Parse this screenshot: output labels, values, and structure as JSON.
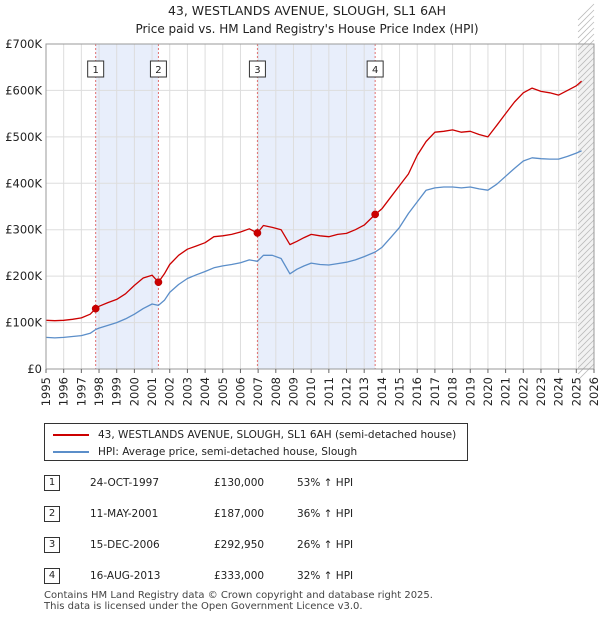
{
  "chart_data": {
    "type": "line",
    "title": "43, WESTLANDS AVENUE, SLOUGH, SL1 6AH",
    "subtitle": "Price paid vs. HM Land Registry's House Price Index (HPI)",
    "xlim": [
      1995,
      2026
    ],
    "ylim": [
      0,
      700000
    ],
    "y_ticks": [
      {
        "value": 0,
        "label": "£0"
      },
      {
        "value": 100000,
        "label": "£100K"
      },
      {
        "value": 200000,
        "label": "£200K"
      },
      {
        "value": 300000,
        "label": "£300K"
      },
      {
        "value": 400000,
        "label": "£400K"
      },
      {
        "value": 500000,
        "label": "£500K"
      },
      {
        "value": 600000,
        "label": "£600K"
      },
      {
        "value": 700000,
        "label": "£700K"
      }
    ],
    "x_ticks": [
      "1995",
      "1996",
      "1997",
      "1998",
      "1999",
      "2000",
      "2001",
      "2002",
      "2003",
      "2004",
      "2005",
      "2006",
      "2007",
      "2008",
      "2009",
      "2010",
      "2011",
      "2012",
      "2013",
      "2014",
      "2015",
      "2016",
      "2017",
      "2018",
      "2019",
      "2020",
      "2021",
      "2022",
      "2023",
      "2024",
      "2025",
      "2026"
    ],
    "forecast_from": 2025.1,
    "colors": {
      "property": "#cc0000",
      "hpi": "#5b8ec9",
      "shade": "#e8eefb",
      "marker": "#cc0000"
    },
    "series": [
      {
        "name": "43, WESTLANDS AVENUE, SLOUGH, SL1 6AH (semi-detached house)",
        "color": "#cc0000",
        "x": [
          1995.0,
          1995.5,
          1996.0,
          1996.5,
          1997.0,
          1997.5,
          1997.81,
          1998.0,
          1998.5,
          1999.0,
          1999.5,
          2000.0,
          2000.5,
          2001.0,
          2001.36,
          2001.7,
          2002.0,
          2002.5,
          2003.0,
          2003.5,
          2004.0,
          2004.5,
          2005.0,
          2005.5,
          2006.0,
          2006.5,
          2006.96,
          2007.3,
          2007.8,
          2008.3,
          2008.8,
          2009.2,
          2009.6,
          2010.0,
          2010.5,
          2011.0,
          2011.5,
          2012.0,
          2012.5,
          2013.0,
          2013.62,
          2014.0,
          2014.5,
          2015.0,
          2015.5,
          2016.0,
          2016.5,
          2017.0,
          2017.5,
          2018.0,
          2018.5,
          2019.0,
          2019.5,
          2020.0,
          2020.5,
          2021.0,
          2021.5,
          2022.0,
          2022.5,
          2023.0,
          2023.5,
          2024.0,
          2024.5,
          2025.0,
          2025.3
        ],
        "values": [
          105000,
          104000,
          105000,
          107000,
          110000,
          118000,
          130000,
          135000,
          143000,
          150000,
          162000,
          180000,
          196000,
          202000,
          187000,
          205000,
          225000,
          245000,
          258000,
          265000,
          272000,
          285000,
          287000,
          290000,
          295000,
          302000,
          292950,
          309000,
          305000,
          300000,
          268000,
          275000,
          283000,
          290000,
          287000,
          285000,
          290000,
          292000,
          300000,
          310000,
          333000,
          345000,
          370000,
          395000,
          420000,
          460000,
          490000,
          510000,
          512000,
          515000,
          510000,
          512000,
          505000,
          500000,
          525000,
          550000,
          575000,
          595000,
          605000,
          598000,
          595000,
          590000,
          600000,
          610000,
          620000
        ]
      },
      {
        "name": "HPI: Average price, semi-detached house, Slough",
        "color": "#5b8ec9",
        "x": [
          1995.0,
          1995.5,
          1996.0,
          1996.5,
          1997.0,
          1997.5,
          1997.81,
          1998.0,
          1998.5,
          1999.0,
          1999.5,
          2000.0,
          2000.5,
          2001.0,
          2001.36,
          2001.7,
          2002.0,
          2002.5,
          2003.0,
          2003.5,
          2004.0,
          2004.5,
          2005.0,
          2005.5,
          2006.0,
          2006.5,
          2006.96,
          2007.3,
          2007.8,
          2008.3,
          2008.8,
          2009.2,
          2009.6,
          2010.0,
          2010.5,
          2011.0,
          2011.5,
          2012.0,
          2012.5,
          2013.0,
          2013.62,
          2014.0,
          2014.5,
          2015.0,
          2015.5,
          2016.0,
          2016.5,
          2017.0,
          2017.5,
          2018.0,
          2018.5,
          2019.0,
          2019.5,
          2020.0,
          2020.5,
          2021.0,
          2021.5,
          2022.0,
          2022.5,
          2023.0,
          2023.5,
          2024.0,
          2024.5,
          2025.0,
          2025.3
        ],
        "values": [
          68000,
          67000,
          68000,
          70000,
          72000,
          77000,
          85000,
          88000,
          94000,
          100000,
          108000,
          118000,
          130000,
          140000,
          137000,
          148000,
          165000,
          182000,
          195000,
          203000,
          210000,
          218000,
          222000,
          225000,
          229000,
          235000,
          232000,
          245000,
          245000,
          238000,
          205000,
          215000,
          222000,
          228000,
          225000,
          224000,
          227000,
          230000,
          235000,
          242000,
          252000,
          262000,
          283000,
          305000,
          335000,
          360000,
          385000,
          390000,
          392000,
          392000,
          390000,
          392000,
          388000,
          385000,
          398000,
          415000,
          432000,
          448000,
          455000,
          453000,
          452000,
          452000,
          458000,
          465000,
          470000
        ]
      }
    ],
    "sales": [
      {
        "id": "1",
        "date": "24-OCT-1997",
        "year": 1997.81,
        "price": 130000,
        "price_label": "£130,000",
        "hpi_label": "53% ↑ HPI"
      },
      {
        "id": "2",
        "date": "11-MAY-2001",
        "year": 2001.36,
        "price": 187000,
        "price_label": "£187,000",
        "hpi_label": "36% ↑ HPI"
      },
      {
        "id": "3",
        "date": "15-DEC-2006",
        "year": 2006.96,
        "price": 292950,
        "price_label": "£292,950",
        "hpi_label": "26% ↑ HPI"
      },
      {
        "id": "4",
        "date": "16-AUG-2013",
        "year": 2013.62,
        "price": 333000,
        "price_label": "£333,000",
        "hpi_label": "32% ↑ HPI"
      }
    ],
    "shaded_periods": [
      [
        1997.81,
        2001.36
      ],
      [
        2006.96,
        2013.62
      ]
    ]
  },
  "legend": {
    "property_label": "43, WESTLANDS AVENUE, SLOUGH, SL1 6AH (semi-detached house)",
    "hpi_label": "HPI: Average price, semi-detached house, Slough"
  },
  "footer": {
    "line1": "Contains HM Land Registry data © Crown copyright and database right 2025.",
    "line2": "This data is licensed under the Open Government Licence v3.0."
  }
}
